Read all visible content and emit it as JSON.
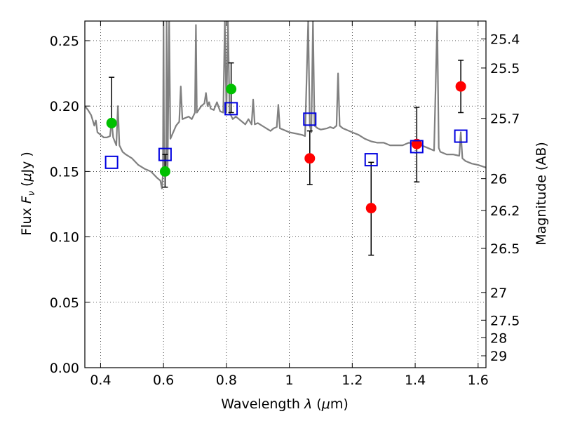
{
  "chart_data": {
    "type": "scatter",
    "title": "",
    "xlabel_prefix": "Wavelength  ",
    "xlabel_lambda": "λ",
    "xlabel_unit": " (",
    "xlabel_mu": "μ",
    "xlabel_suffix": "m)",
    "ylabel_prefix": "Flux  ",
    "ylabel_F": "F",
    "ylabel_nu": "ν",
    "ylabel_open": "  (",
    "ylabel_mu": "μ",
    "ylabel_close": "Jy )",
    "y2label": "Magnitude (AB)",
    "xlim": [
      0.35,
      1.625
    ],
    "ylim": [
      0.0,
      0.265
    ],
    "grid": true,
    "x_ticks": [
      {
        "v": 0.4,
        "label": "0.4"
      },
      {
        "v": 0.6,
        "label": "0.6"
      },
      {
        "v": 0.8,
        "label": "0.8"
      },
      {
        "v": 1.0,
        "label": "1"
      },
      {
        "v": 1.2,
        "label": "1.2"
      },
      {
        "v": 1.4,
        "label": "1.4"
      },
      {
        "v": 1.6,
        "label": "1.6"
      }
    ],
    "y_ticks": [
      {
        "v": 0.0,
        "label": "0.00"
      },
      {
        "v": 0.05,
        "label": "0.05"
      },
      {
        "v": 0.1,
        "label": "0.10"
      },
      {
        "v": 0.15,
        "label": "0.15"
      },
      {
        "v": 0.2,
        "label": "0.20"
      },
      {
        "v": 0.25,
        "label": "0.25"
      }
    ],
    "y2_ticks": [
      {
        "label": "25.4",
        "flux": 0.2513
      },
      {
        "label": "25.5",
        "flux": 0.2291
      },
      {
        "label": "25.7",
        "flux": 0.1906
      },
      {
        "label": "26",
        "flux": 0.1445
      },
      {
        "label": "26.2",
        "flux": 0.1202
      },
      {
        "label": "26.5",
        "flux": 0.0912
      },
      {
        "label": "27",
        "flux": 0.0575
      },
      {
        "label": "27.5",
        "flux": 0.0363
      },
      {
        "label": "28",
        "flux": 0.0229
      },
      {
        "label": "29",
        "flux": 0.0091
      }
    ],
    "spectrum": {
      "color": "#808080",
      "points": [
        [
          0.35,
          0.2
        ],
        [
          0.36,
          0.197
        ],
        [
          0.37,
          0.193
        ],
        [
          0.38,
          0.185
        ],
        [
          0.385,
          0.189
        ],
        [
          0.39,
          0.18
        ],
        [
          0.4,
          0.178
        ],
        [
          0.41,
          0.176
        ],
        [
          0.42,
          0.176
        ],
        [
          0.43,
          0.177
        ],
        [
          0.435,
          0.189
        ],
        [
          0.44,
          0.176
        ],
        [
          0.45,
          0.17
        ],
        [
          0.455,
          0.2
        ],
        [
          0.46,
          0.17
        ],
        [
          0.47,
          0.165
        ],
        [
          0.48,
          0.163
        ],
        [
          0.5,
          0.16
        ],
        [
          0.52,
          0.155
        ],
        [
          0.54,
          0.152
        ],
        [
          0.56,
          0.15
        ],
        [
          0.58,
          0.145
        ],
        [
          0.59,
          0.143
        ],
        [
          0.595,
          0.137
        ],
        [
          0.598,
          0.148
        ],
        [
          0.6,
          0.265
        ],
        [
          0.602,
          0.15
        ],
        [
          0.605,
          0.147
        ],
        [
          0.608,
          0.155
        ],
        [
          0.61,
          0.265
        ],
        [
          0.613,
          0.15
        ],
        [
          0.618,
          0.265
        ],
        [
          0.622,
          0.175
        ],
        [
          0.64,
          0.185
        ],
        [
          0.65,
          0.188
        ],
        [
          0.655,
          0.215
        ],
        [
          0.66,
          0.19
        ],
        [
          0.68,
          0.192
        ],
        [
          0.69,
          0.19
        ],
        [
          0.7,
          0.195
        ],
        [
          0.703,
          0.262
        ],
        [
          0.706,
          0.195
        ],
        [
          0.72,
          0.2
        ],
        [
          0.73,
          0.202
        ],
        [
          0.735,
          0.21
        ],
        [
          0.74,
          0.2
        ],
        [
          0.745,
          0.203
        ],
        [
          0.75,
          0.198
        ],
        [
          0.76,
          0.197
        ],
        [
          0.77,
          0.203
        ],
        [
          0.78,
          0.196
        ],
        [
          0.79,
          0.195
        ],
        [
          0.795,
          0.265
        ],
        [
          0.8,
          0.195
        ],
        [
          0.805,
          0.265
        ],
        [
          0.81,
          0.195
        ],
        [
          0.82,
          0.19
        ],
        [
          0.83,
          0.192
        ],
        [
          0.84,
          0.19
        ],
        [
          0.85,
          0.188
        ],
        [
          0.86,
          0.186
        ],
        [
          0.87,
          0.19
        ],
        [
          0.88,
          0.186
        ],
        [
          0.885,
          0.205
        ],
        [
          0.89,
          0.186
        ],
        [
          0.9,
          0.187
        ],
        [
          0.92,
          0.184
        ],
        [
          0.94,
          0.181
        ],
        [
          0.95,
          0.183
        ],
        [
          0.96,
          0.184
        ],
        [
          0.965,
          0.201
        ],
        [
          0.97,
          0.183
        ],
        [
          0.98,
          0.182
        ],
        [
          1.0,
          0.18
        ],
        [
          1.02,
          0.179
        ],
        [
          1.04,
          0.178
        ],
        [
          1.05,
          0.177
        ],
        [
          1.06,
          0.265
        ],
        [
          1.065,
          0.185
        ],
        [
          1.07,
          0.18
        ],
        [
          1.075,
          0.265
        ],
        [
          1.08,
          0.185
        ],
        [
          1.09,
          0.183
        ],
        [
          1.1,
          0.182
        ],
        [
          1.12,
          0.183
        ],
        [
          1.13,
          0.184
        ],
        [
          1.14,
          0.183
        ],
        [
          1.15,
          0.185
        ],
        [
          1.155,
          0.225
        ],
        [
          1.16,
          0.185
        ],
        [
          1.17,
          0.183
        ],
        [
          1.18,
          0.182
        ],
        [
          1.2,
          0.18
        ],
        [
          1.22,
          0.178
        ],
        [
          1.24,
          0.175
        ],
        [
          1.26,
          0.173
        ],
        [
          1.28,
          0.172
        ],
        [
          1.3,
          0.172
        ],
        [
          1.32,
          0.17
        ],
        [
          1.34,
          0.17
        ],
        [
          1.36,
          0.17
        ],
        [
          1.38,
          0.172
        ],
        [
          1.4,
          0.171
        ],
        [
          1.42,
          0.17
        ],
        [
          1.44,
          0.168
        ],
        [
          1.46,
          0.166
        ],
        [
          1.47,
          0.265
        ],
        [
          1.475,
          0.168
        ],
        [
          1.48,
          0.165
        ],
        [
          1.5,
          0.163
        ],
        [
          1.52,
          0.163
        ],
        [
          1.54,
          0.162
        ],
        [
          1.545,
          0.18
        ],
        [
          1.55,
          0.16
        ],
        [
          1.56,
          0.158
        ],
        [
          1.58,
          0.156
        ],
        [
          1.6,
          0.155
        ],
        [
          1.625,
          0.153
        ]
      ]
    },
    "series": [
      {
        "marker": "filled-circle",
        "color": "#00c000",
        "points": [
          {
            "x": 0.435,
            "y": 0.187,
            "lo": 0.187,
            "hi": 0.222
          },
          {
            "x": 0.605,
            "y": 0.15,
            "lo": 0.138,
            "hi": 0.163
          },
          {
            "x": 0.815,
            "y": 0.213,
            "lo": 0.195,
            "hi": 0.233
          }
        ]
      },
      {
        "marker": "filled-circle",
        "color": "#ff0000",
        "points": [
          {
            "x": 1.065,
            "y": 0.16,
            "lo": 0.14,
            "hi": 0.181
          },
          {
            "x": 1.26,
            "y": 0.122,
            "lo": 0.086,
            "hi": 0.157
          },
          {
            "x": 1.405,
            "y": 0.171,
            "lo": 0.142,
            "hi": 0.199
          },
          {
            "x": 1.545,
            "y": 0.215,
            "lo": 0.195,
            "hi": 0.235
          }
        ]
      },
      {
        "marker": "open-square",
        "color": "#0000e0",
        "points": [
          {
            "x": 0.435,
            "y": 0.157
          },
          {
            "x": 0.605,
            "y": 0.163
          },
          {
            "x": 0.815,
            "y": 0.198
          },
          {
            "x": 1.065,
            "y": 0.19
          },
          {
            "x": 1.26,
            "y": 0.159
          },
          {
            "x": 1.405,
            "y": 0.169
          },
          {
            "x": 1.545,
            "y": 0.177
          }
        ]
      }
    ]
  }
}
